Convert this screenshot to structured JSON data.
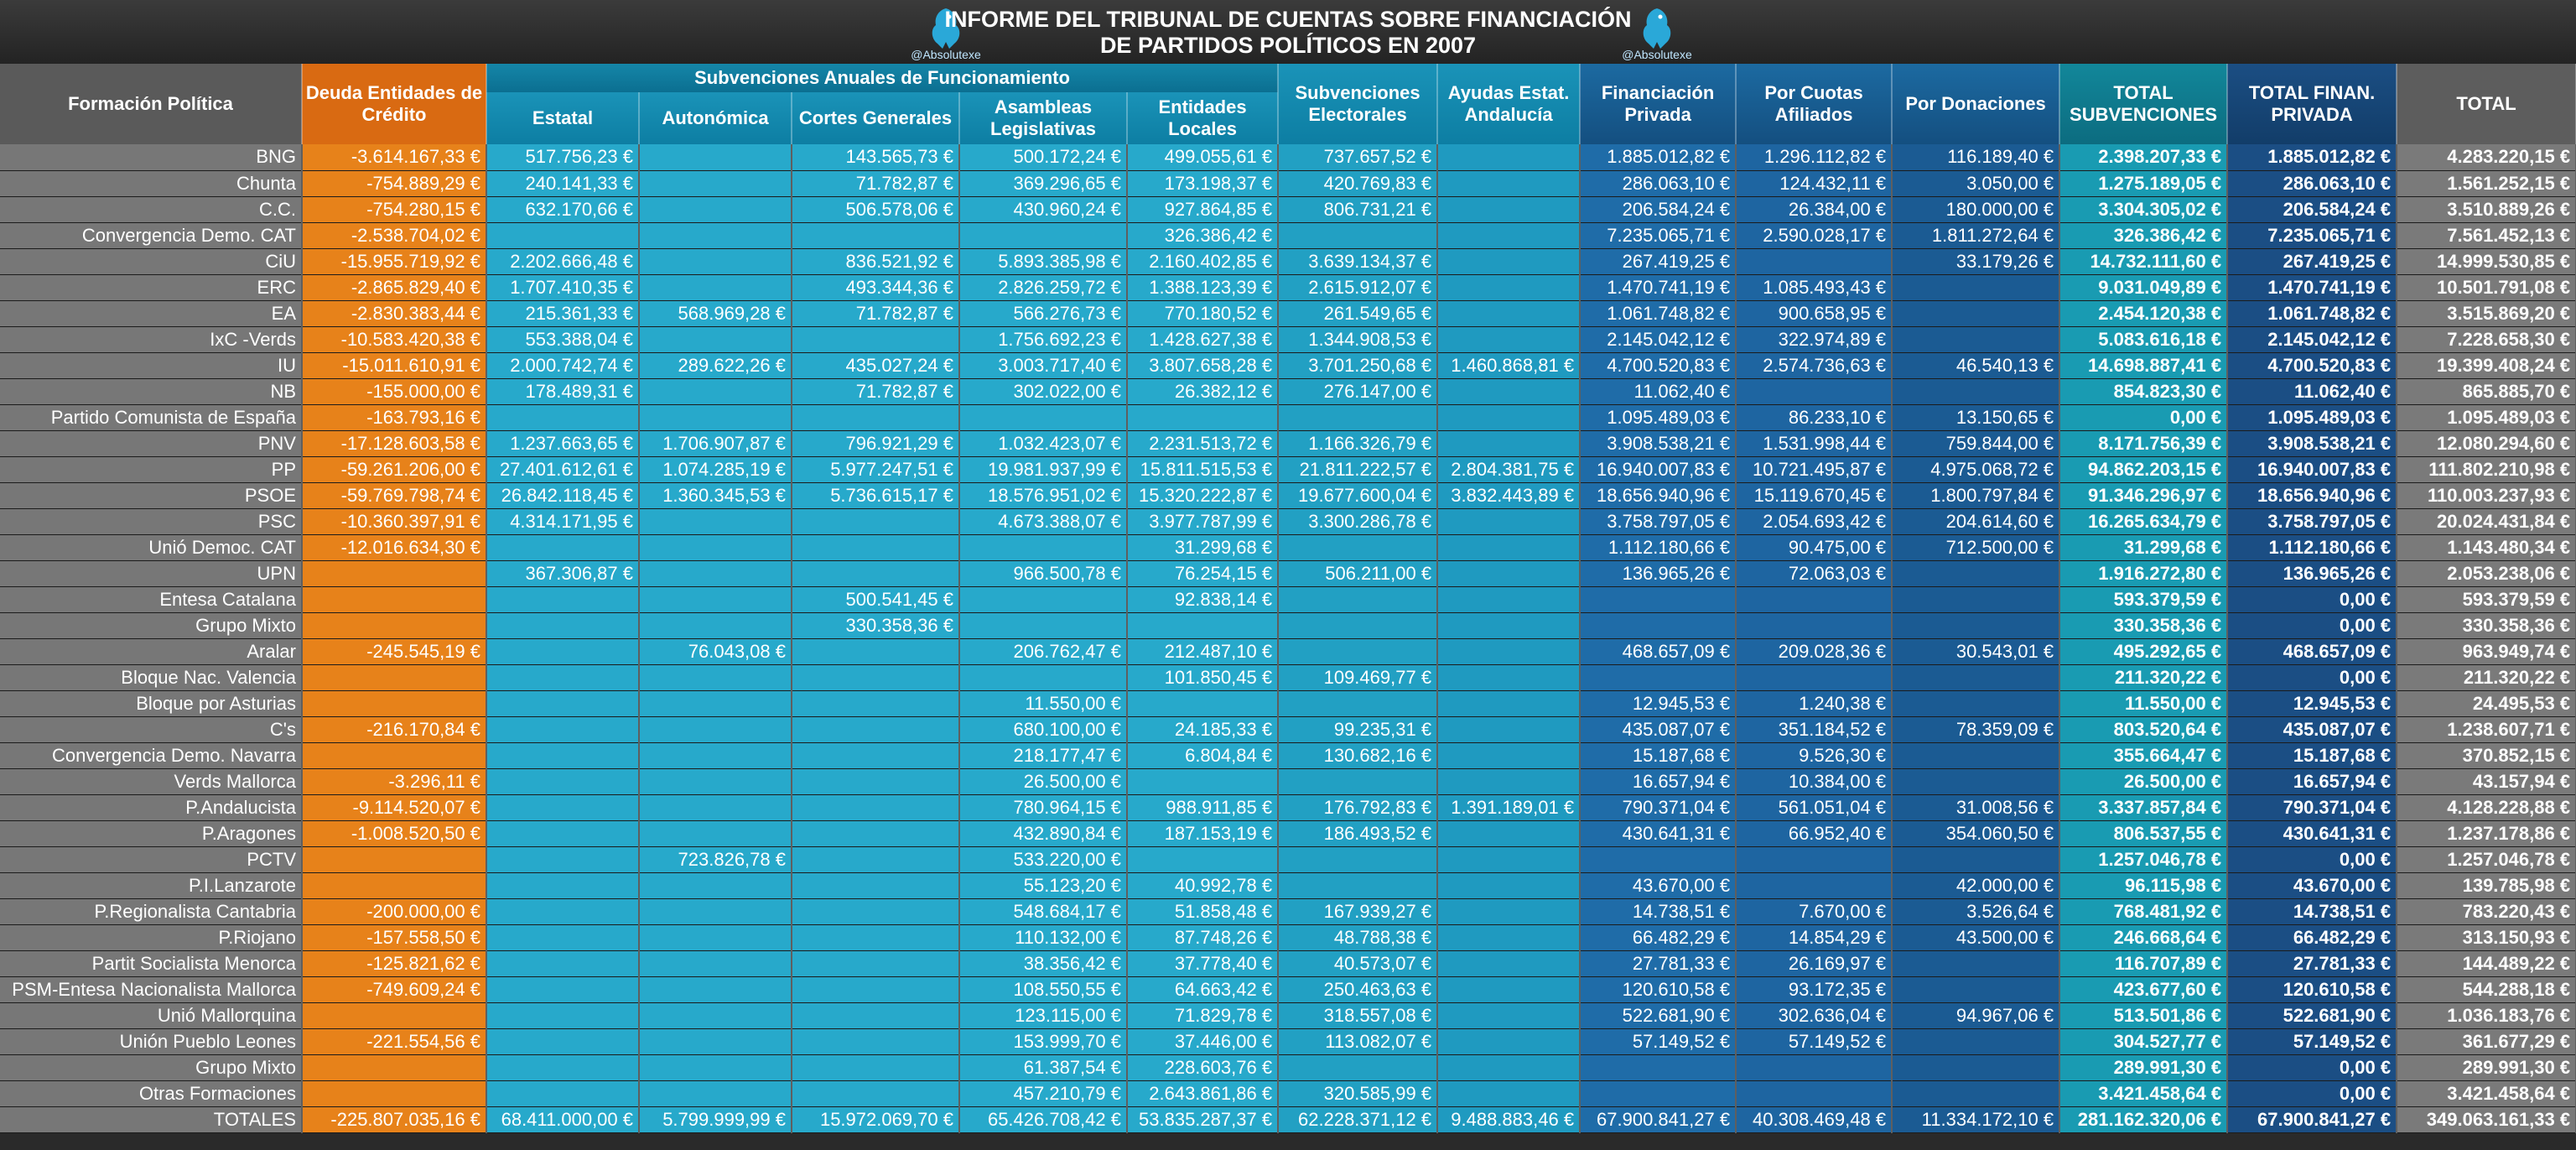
{
  "header": {
    "title_line1": "INFORME DEL TRIBUNAL DE CUENTAS SOBRE FINANCIACIÓN",
    "title_line2": "DE PARTIDOS POLÍTICOS EN 2007",
    "logo_caption": "@Absolutexe"
  },
  "columns": {
    "name": "Formación Política",
    "deuda": "Deuda Entidades de Crédito",
    "group_sub": "Subvenciones Anuales de Funcionamiento",
    "estatal": "Estatal",
    "autonomica": "Autonómica",
    "cortes": "Cortes Generales",
    "asambleas": "Asambleas Legislativas",
    "locales": "Entidades Locales",
    "electorales": "Subvenciones Electorales",
    "andalucia": "Ayudas Estat. Andalucía",
    "privada": "Financiación Privada",
    "afiliados": "Por Cuotas Afiliados",
    "donaciones": "Por Donaciones",
    "total_sub": "TOTAL SUBVENCIONES",
    "total_priv": "TOTAL FINAN. PRIVADA",
    "total": "TOTAL"
  },
  "rows": [
    [
      "BNG",
      "-3.614.167,33 €",
      "517.756,23 €",
      "",
      "143.565,73 €",
      "500.172,24 €",
      "499.055,61 €",
      "737.657,52 €",
      "",
      "1.885.012,82 €",
      "1.296.112,82 €",
      "116.189,40 €",
      "2.398.207,33 €",
      "1.885.012,82 €",
      "4.283.220,15 €"
    ],
    [
      "Chunta",
      "-754.889,29 €",
      "240.141,33 €",
      "",
      "71.782,87 €",
      "369.296,65 €",
      "173.198,37 €",
      "420.769,83 €",
      "",
      "286.063,10 €",
      "124.432,11 €",
      "3.050,00 €",
      "1.275.189,05 €",
      "286.063,10 €",
      "1.561.252,15 €"
    ],
    [
      "C.C.",
      "-754.280,15 €",
      "632.170,66 €",
      "",
      "506.578,06 €",
      "430.960,24 €",
      "927.864,85 €",
      "806.731,21 €",
      "",
      "206.584,24 €",
      "26.384,00 €",
      "180.000,00 €",
      "3.304.305,02 €",
      "206.584,24 €",
      "3.510.889,26 €"
    ],
    [
      "Convergencia Demo. CAT",
      "-2.538.704,02 €",
      "",
      "",
      "",
      "",
      "326.386,42 €",
      "",
      "",
      "7.235.065,71 €",
      "2.590.028,17 €",
      "1.811.272,64 €",
      "326.386,42 €",
      "7.235.065,71 €",
      "7.561.452,13 €"
    ],
    [
      "CiU",
      "-15.955.719,92 €",
      "2.202.666,48 €",
      "",
      "836.521,92 €",
      "5.893.385,98 €",
      "2.160.402,85 €",
      "3.639.134,37 €",
      "",
      "267.419,25 €",
      "",
      "33.179,26 €",
      "14.732.111,60 €",
      "267.419,25 €",
      "14.999.530,85 €"
    ],
    [
      "ERC",
      "-2.865.829,40 €",
      "1.707.410,35 €",
      "",
      "493.344,36 €",
      "2.826.259,72 €",
      "1.388.123,39 €",
      "2.615.912,07 €",
      "",
      "1.470.741,19 €",
      "1.085.493,43 €",
      "",
      "9.031.049,89 €",
      "1.470.741,19 €",
      "10.501.791,08 €"
    ],
    [
      "EA",
      "-2.830.383,44 €",
      "215.361,33 €",
      "568.969,28 €",
      "71.782,87 €",
      "566.276,73 €",
      "770.180,52 €",
      "261.549,65 €",
      "",
      "1.061.748,82 €",
      "900.658,95 €",
      "",
      "2.454.120,38 €",
      "1.061.748,82 €",
      "3.515.869,20 €"
    ],
    [
      "IxC -Verds",
      "-10.583.420,38 €",
      "553.388,04 €",
      "",
      "",
      "1.756.692,23 €",
      "1.428.627,38 €",
      "1.344.908,53 €",
      "",
      "2.145.042,12 €",
      "322.974,89 €",
      "",
      "5.083.616,18 €",
      "2.145.042,12 €",
      "7.228.658,30 €"
    ],
    [
      "IU",
      "-15.011.610,91 €",
      "2.000.742,74 €",
      "289.622,26 €",
      "435.027,24 €",
      "3.003.717,40 €",
      "3.807.658,28 €",
      "3.701.250,68 €",
      "1.460.868,81 €",
      "4.700.520,83 €",
      "2.574.736,63 €",
      "46.540,13 €",
      "14.698.887,41 €",
      "4.700.520,83 €",
      "19.399.408,24 €"
    ],
    [
      "NB",
      "-155.000,00 €",
      "178.489,31 €",
      "",
      "71.782,87 €",
      "302.022,00 €",
      "26.382,12 €",
      "276.147,00 €",
      "",
      "11.062,40 €",
      "",
      "",
      "854.823,30 €",
      "11.062,40 €",
      "865.885,70 €"
    ],
    [
      "Partido Comunista de España",
      "-163.793,16 €",
      "",
      "",
      "",
      "",
      "",
      "",
      "",
      "1.095.489,03 €",
      "86.233,10 €",
      "13.150,65 €",
      "0,00 €",
      "1.095.489,03 €",
      "1.095.489,03 €"
    ],
    [
      "PNV",
      "-17.128.603,58 €",
      "1.237.663,65 €",
      "1.706.907,87 €",
      "796.921,29 €",
      "1.032.423,07 €",
      "2.231.513,72 €",
      "1.166.326,79 €",
      "",
      "3.908.538,21 €",
      "1.531.998,44 €",
      "759.844,00 €",
      "8.171.756,39 €",
      "3.908.538,21 €",
      "12.080.294,60 €"
    ],
    [
      "PP",
      "-59.261.206,00 €",
      "27.401.612,61 €",
      "1.074.285,19 €",
      "5.977.247,51 €",
      "19.981.937,99 €",
      "15.811.515,53 €",
      "21.811.222,57 €",
      "2.804.381,75 €",
      "16.940.007,83 €",
      "10.721.495,87 €",
      "4.975.068,72 €",
      "94.862.203,15 €",
      "16.940.007,83 €",
      "111.802.210,98 €"
    ],
    [
      "PSOE",
      "-59.769.798,74 €",
      "26.842.118,45 €",
      "1.360.345,53 €",
      "5.736.615,17 €",
      "18.576.951,02 €",
      "15.320.222,87 €",
      "19.677.600,04 €",
      "3.832.443,89 €",
      "18.656.940,96 €",
      "15.119.670,45 €",
      "1.800.797,84 €",
      "91.346.296,97 €",
      "18.656.940,96 €",
      "110.003.237,93 €"
    ],
    [
      "PSC",
      "-10.360.397,91 €",
      "4.314.171,95 €",
      "",
      "",
      "4.673.388,07 €",
      "3.977.787,99 €",
      "3.300.286,78 €",
      "",
      "3.758.797,05 €",
      "2.054.693,42 €",
      "204.614,60 €",
      "16.265.634,79 €",
      "3.758.797,05 €",
      "20.024.431,84 €"
    ],
    [
      "Unió Democ. CAT",
      "-12.016.634,30 €",
      "",
      "",
      "",
      "",
      "31.299,68 €",
      "",
      "",
      "1.112.180,66 €",
      "90.475,00 €",
      "712.500,00 €",
      "31.299,68 €",
      "1.112.180,66 €",
      "1.143.480,34 €"
    ],
    [
      "UPN",
      "",
      "367.306,87 €",
      "",
      "",
      "966.500,78 €",
      "76.254,15 €",
      "506.211,00 €",
      "",
      "136.965,26 €",
      "72.063,03 €",
      "",
      "1.916.272,80 €",
      "136.965,26 €",
      "2.053.238,06 €"
    ],
    [
      "Entesa Catalana",
      "",
      "",
      "",
      "500.541,45 €",
      "",
      "92.838,14 €",
      "",
      "",
      "",
      "",
      "",
      "593.379,59 €",
      "0,00 €",
      "593.379,59 €"
    ],
    [
      "Grupo Mixto",
      "",
      "",
      "",
      "330.358,36 €",
      "",
      "",
      "",
      "",
      "",
      "",
      "",
      "330.358,36 €",
      "0,00 €",
      "330.358,36 €"
    ],
    [
      "Aralar",
      "-245.545,19 €",
      "",
      "76.043,08 €",
      "",
      "206.762,47 €",
      "212.487,10 €",
      "",
      "",
      "468.657,09 €",
      "209.028,36 €",
      "30.543,01 €",
      "495.292,65 €",
      "468.657,09 €",
      "963.949,74 €"
    ],
    [
      "Bloque Nac. Valencia",
      "",
      "",
      "",
      "",
      "",
      "101.850,45 €",
      "109.469,77 €",
      "",
      "",
      "",
      "",
      "211.320,22 €",
      "0,00 €",
      "211.320,22 €"
    ],
    [
      "Bloque por Asturias",
      "",
      "",
      "",
      "",
      "11.550,00 €",
      "",
      "",
      "",
      "12.945,53 €",
      "1.240,38 €",
      "",
      "11.550,00 €",
      "12.945,53 €",
      "24.495,53 €"
    ],
    [
      "C's",
      "-216.170,84 €",
      "",
      "",
      "",
      "680.100,00 €",
      "24.185,33 €",
      "99.235,31 €",
      "",
      "435.087,07 €",
      "351.184,52 €",
      "78.359,09 €",
      "803.520,64 €",
      "435.087,07 €",
      "1.238.607,71 €"
    ],
    [
      "Convergencia Demo. Navarra",
      "",
      "",
      "",
      "",
      "218.177,47 €",
      "6.804,84 €",
      "130.682,16 €",
      "",
      "15.187,68 €",
      "9.526,30 €",
      "",
      "355.664,47 €",
      "15.187,68 €",
      "370.852,15 €"
    ],
    [
      "Verds Mallorca",
      "-3.296,11 €",
      "",
      "",
      "",
      "26.500,00 €",
      "",
      "",
      "",
      "16.657,94 €",
      "10.384,00 €",
      "",
      "26.500,00 €",
      "16.657,94 €",
      "43.157,94 €"
    ],
    [
      "P.Andalucista",
      "-9.114.520,07 €",
      "",
      "",
      "",
      "780.964,15 €",
      "988.911,85 €",
      "176.792,83 €",
      "1.391.189,01 €",
      "790.371,04 €",
      "561.051,04 €",
      "31.008,56 €",
      "3.337.857,84 €",
      "790.371,04 €",
      "4.128.228,88 €"
    ],
    [
      "P.Aragones",
      "-1.008.520,50 €",
      "",
      "",
      "",
      "432.890,84 €",
      "187.153,19 €",
      "186.493,52 €",
      "",
      "430.641,31 €",
      "66.952,40 €",
      "354.060,50 €",
      "806.537,55 €",
      "430.641,31 €",
      "1.237.178,86 €"
    ],
    [
      "PCTV",
      "",
      "",
      "723.826,78 €",
      "",
      "533.220,00 €",
      "",
      "",
      "",
      "",
      "",
      "",
      "1.257.046,78 €",
      "0,00 €",
      "1.257.046,78 €"
    ],
    [
      "P.I.Lanzarote",
      "",
      "",
      "",
      "",
      "55.123,20 €",
      "40.992,78 €",
      "",
      "",
      "43.670,00 €",
      "",
      "42.000,00 €",
      "96.115,98 €",
      "43.670,00 €",
      "139.785,98 €"
    ],
    [
      "P.Regionalista Cantabria",
      "-200.000,00 €",
      "",
      "",
      "",
      "548.684,17 €",
      "51.858,48 €",
      "167.939,27 €",
      "",
      "14.738,51 €",
      "7.670,00 €",
      "3.526,64 €",
      "768.481,92 €",
      "14.738,51 €",
      "783.220,43 €"
    ],
    [
      "P.Riojano",
      "-157.558,50 €",
      "",
      "",
      "",
      "110.132,00 €",
      "87.748,26 €",
      "48.788,38 €",
      "",
      "66.482,29 €",
      "14.854,29 €",
      "43.500,00 €",
      "246.668,64 €",
      "66.482,29 €",
      "313.150,93 €"
    ],
    [
      "Partit Socialista Menorca",
      "-125.821,62 €",
      "",
      "",
      "",
      "38.356,42 €",
      "37.778,40 €",
      "40.573,07 €",
      "",
      "27.781,33 €",
      "26.169,97 €",
      "",
      "116.707,89 €",
      "27.781,33 €",
      "144.489,22 €"
    ],
    [
      "PSM-Entesa Nacionalista Mallorca",
      "-749.609,24 €",
      "",
      "",
      "",
      "108.550,55 €",
      "64.663,42 €",
      "250.463,63 €",
      "",
      "120.610,58 €",
      "93.172,35 €",
      "",
      "423.677,60 €",
      "120.610,58 €",
      "544.288,18 €"
    ],
    [
      "Unió Mallorquina",
      "",
      "",
      "",
      "",
      "123.115,00 €",
      "71.829,78 €",
      "318.557,08 €",
      "",
      "522.681,90 €",
      "302.636,04 €",
      "94.967,06 €",
      "513.501,86 €",
      "522.681,90 €",
      "1.036.183,76 €"
    ],
    [
      "Unión Pueblo Leones",
      "-221.554,56 €",
      "",
      "",
      "",
      "153.999,70 €",
      "37.446,00 €",
      "113.082,07 €",
      "",
      "57.149,52 €",
      "57.149,52 €",
      "",
      "304.527,77 €",
      "57.149,52 €",
      "361.677,29 €"
    ],
    [
      "Grupo Mixto",
      "",
      "",
      "",
      "",
      "61.387,54 €",
      "228.603,76 €",
      "",
      "",
      "",
      "",
      "",
      "289.991,30 €",
      "0,00 €",
      "289.991,30 €"
    ],
    [
      "Otras Formaciones",
      "",
      "",
      "",
      "",
      "457.210,79 €",
      "2.643.861,86 €",
      "320.585,99 €",
      "",
      "",
      "",
      "",
      "3.421.458,64 €",
      "0,00 €",
      "3.421.458,64 €"
    ]
  ],
  "totals": [
    "TOTALES",
    "-225.807.035,16 €",
    "68.411.000,00 €",
    "5.799.999,99 €",
    "15.972.069,70 €",
    "65.426.708,42 €",
    "53.835.287,37 €",
    "62.228.371,12 €",
    "9.488.883,46 €",
    "67.900.841,27 €",
    "40.308.469,48 €",
    "11.334.172,10 €",
    "281.162.320,06 €",
    "67.900.841,27 €",
    "349.063.161,33 €"
  ]
}
